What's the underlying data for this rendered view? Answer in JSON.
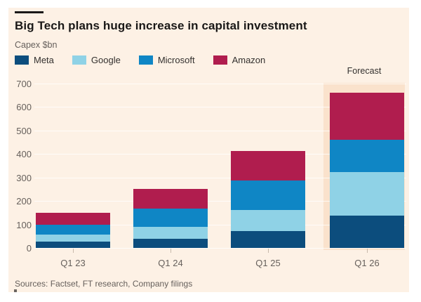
{
  "header": {
    "title": "Big Tech plans huge increase in capital investment",
    "subtitle": "Capex $bn"
  },
  "legend": [
    {
      "label": "Meta",
      "color": "#0c4d7d"
    },
    {
      "label": "Google",
      "color": "#8fd2e6"
    },
    {
      "label": "Microsoft",
      "color": "#0f86c5"
    },
    {
      "label": "Amazon",
      "color": "#b01d4e"
    }
  ],
  "chart_data": {
    "type": "bar",
    "stacked": true,
    "title": "Big Tech plans huge increase in capital investment",
    "ylabel": "Capex $bn",
    "xlabel": "",
    "categories": [
      "Q1 23",
      "Q1 24",
      "Q1 25",
      "Q1 26"
    ],
    "series": [
      {
        "name": "Meta",
        "color": "#0c4d7d",
        "values": [
          28,
          40,
          73,
          138
        ]
      },
      {
        "name": "Google",
        "color": "#8fd2e6",
        "values": [
          28,
          51,
          88,
          185
        ]
      },
      {
        "name": "Microsoft",
        "color": "#0f86c5",
        "values": [
          44,
          76,
          125,
          137
        ]
      },
      {
        "name": "Amazon",
        "color": "#b01d4e",
        "values": [
          50,
          83,
          126,
          200
        ]
      }
    ],
    "totals": [
      150,
      250,
      412,
      660
    ],
    "ylim": [
      0,
      700
    ],
    "yticks": [
      0,
      100,
      200,
      300,
      400,
      500,
      600,
      700
    ],
    "grid": "horizontal",
    "legend_position": "top",
    "forecast_label": "Forecast",
    "forecast_categories": [
      "Q1 26"
    ]
  },
  "footer": {
    "sources": "Sources: Factset, FT research, Company filings"
  },
  "colors": {
    "background": "#fdf1e5",
    "forecast_band": "#fae2cc",
    "text_primary": "#1a1817",
    "text_secondary": "#66605c"
  }
}
